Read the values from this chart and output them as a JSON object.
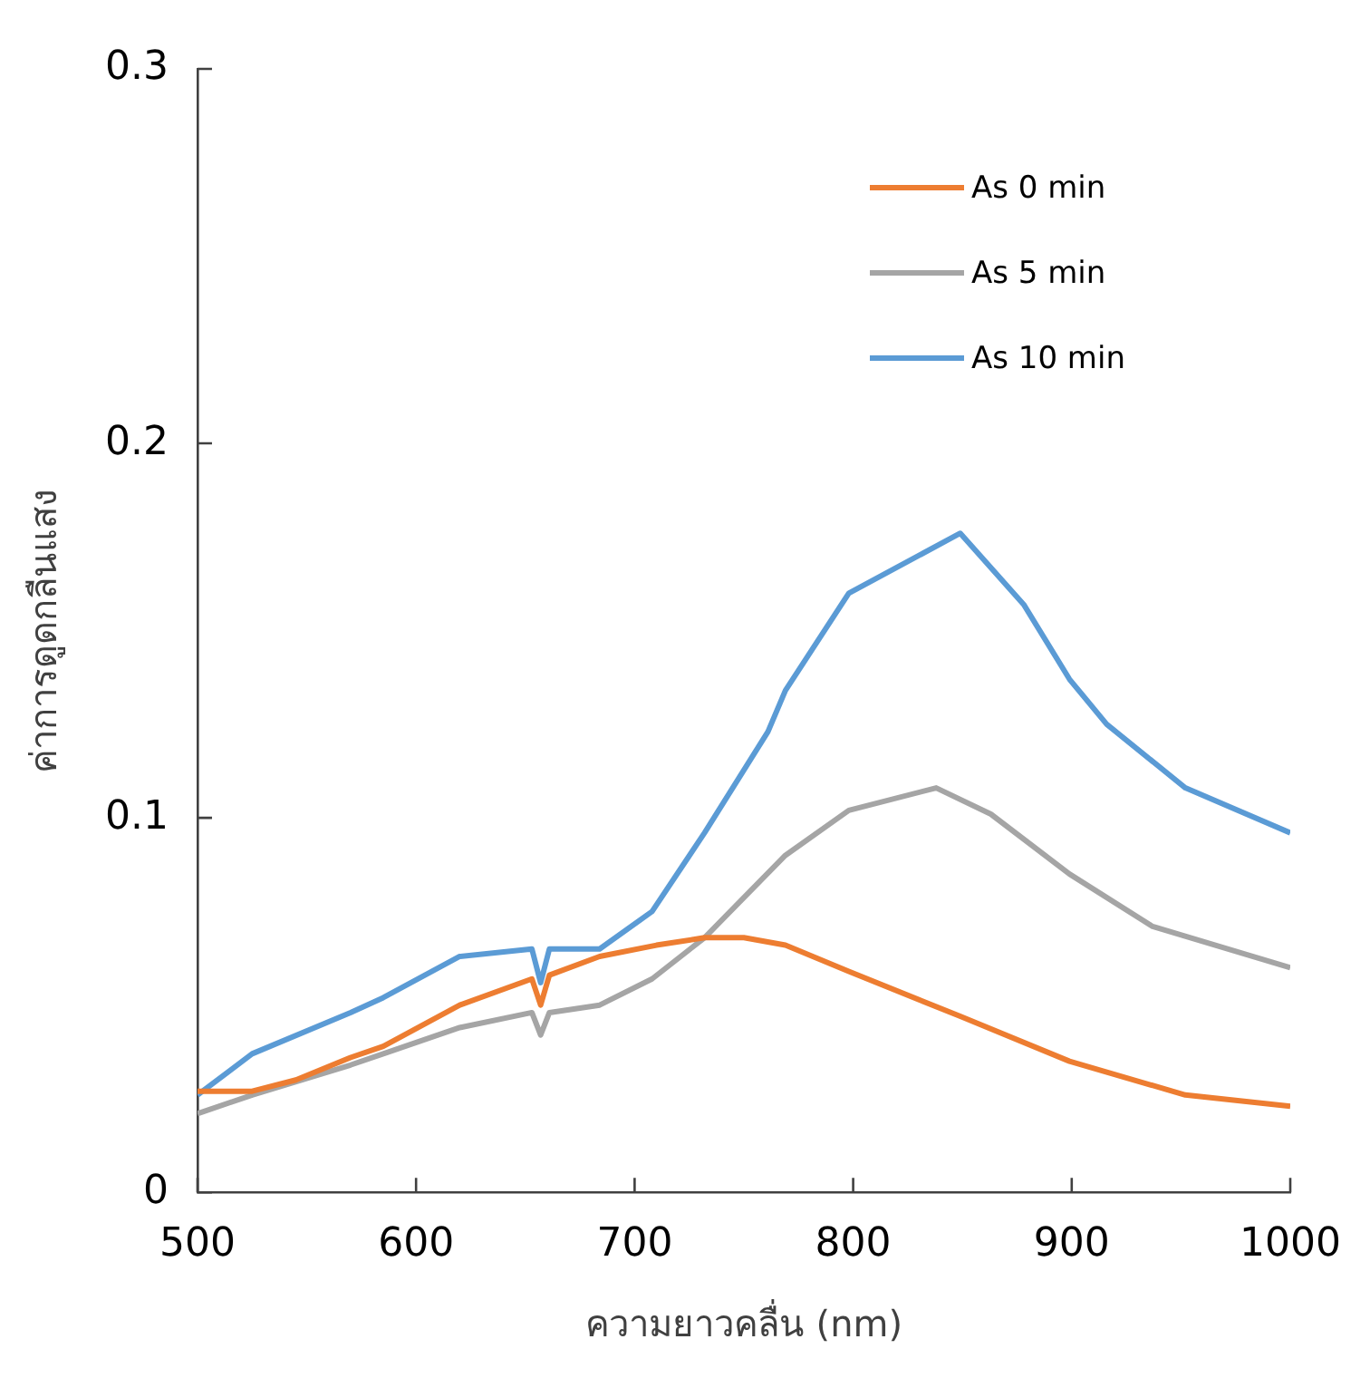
{
  "chart_data": {
    "type": "line",
    "xlabel": "ความยาวคลื่น (nm)",
    "ylabel": "ค่าการดูดกลืนแสง",
    "xlim": [
      500,
      1000
    ],
    "xticks": [
      500,
      600,
      700,
      800,
      900,
      1000
    ],
    "ylim": [
      0,
      0.3
    ],
    "yticks": [
      0,
      0.1,
      0.2,
      0.3
    ],
    "grid": false,
    "legend": "top right",
    "marker": "none",
    "line_style": "solid",
    "series": [
      {
        "name": "As 0 min",
        "color": "#ed7d31",
        "x": [
          500,
          525,
          545,
          570,
          585,
          620,
          653,
          657,
          661,
          684,
          710,
          732,
          750,
          769,
          798,
          849,
          899,
          952,
          1000
        ],
        "values": [
          0.027,
          0.027,
          0.03,
          0.036,
          0.039,
          0.05,
          0.057,
          0.05,
          0.058,
          0.063,
          0.066,
          0.068,
          0.068,
          0.066,
          0.059,
          0.047,
          0.035,
          0.026,
          0.023
        ]
      },
      {
        "name": "As 5 min",
        "color": "#a5a5a5",
        "x": [
          500,
          525,
          570,
          585,
          620,
          653,
          657,
          661,
          684,
          708,
          732,
          769,
          798,
          838,
          863,
          899,
          937,
          1000
        ],
        "values": [
          0.021,
          0.026,
          0.034,
          0.037,
          0.044,
          0.048,
          0.042,
          0.048,
          0.05,
          0.057,
          0.068,
          0.09,
          0.102,
          0.108,
          0.101,
          0.085,
          0.071,
          0.06
        ]
      },
      {
        "name": "As 10 min",
        "color": "#5b9bd5",
        "x": [
          500,
          525,
          570,
          585,
          620,
          653,
          657,
          661,
          684,
          708,
          732,
          761,
          769,
          798,
          849,
          878,
          899,
          916,
          952,
          1000
        ],
        "values": [
          0.026,
          0.037,
          0.048,
          0.052,
          0.063,
          0.065,
          0.056,
          0.065,
          0.065,
          0.075,
          0.096,
          0.123,
          0.134,
          0.16,
          0.176,
          0.157,
          0.137,
          0.125,
          0.108,
          0.096
        ]
      }
    ]
  }
}
